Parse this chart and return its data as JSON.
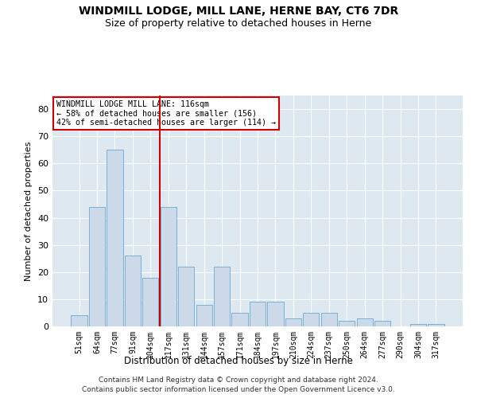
{
  "title": "WINDMILL LODGE, MILL LANE, HERNE BAY, CT6 7DR",
  "subtitle": "Size of property relative to detached houses in Herne",
  "xlabel": "Distribution of detached houses by size in Herne",
  "ylabel": "Number of detached properties",
  "categories": [
    "51sqm",
    "64sqm",
    "77sqm",
    "91sqm",
    "104sqm",
    "117sqm",
    "131sqm",
    "144sqm",
    "157sqm",
    "171sqm",
    "184sqm",
    "197sqm",
    "210sqm",
    "224sqm",
    "237sqm",
    "250sqm",
    "264sqm",
    "277sqm",
    "290sqm",
    "304sqm",
    "317sqm"
  ],
  "values": [
    4,
    44,
    65,
    26,
    18,
    44,
    22,
    8,
    22,
    5,
    9,
    9,
    3,
    5,
    5,
    2,
    3,
    2,
    0,
    1,
    1
  ],
  "bar_color": "#ccd9e8",
  "bar_edge_color": "#7aafd4",
  "property_line_label": "WINDMILL LODGE MILL LANE: 116sqm",
  "annotation_line1": "← 58% of detached houses are smaller (156)",
  "annotation_line2": "42% of semi-detached houses are larger (114) →",
  "annotation_box_color": "#ffffff",
  "annotation_box_edge": "#cc0000",
  "vline_color": "#cc0000",
  "ylim": [
    0,
    85
  ],
  "yticks": [
    0,
    10,
    20,
    30,
    40,
    50,
    60,
    70,
    80
  ],
  "footer1": "Contains HM Land Registry data © Crown copyright and database right 2024.",
  "footer2": "Contains public sector information licensed under the Open Government Licence v3.0.",
  "plot_background": "#dde8f0",
  "title_fontsize": 10,
  "subtitle_fontsize": 9
}
